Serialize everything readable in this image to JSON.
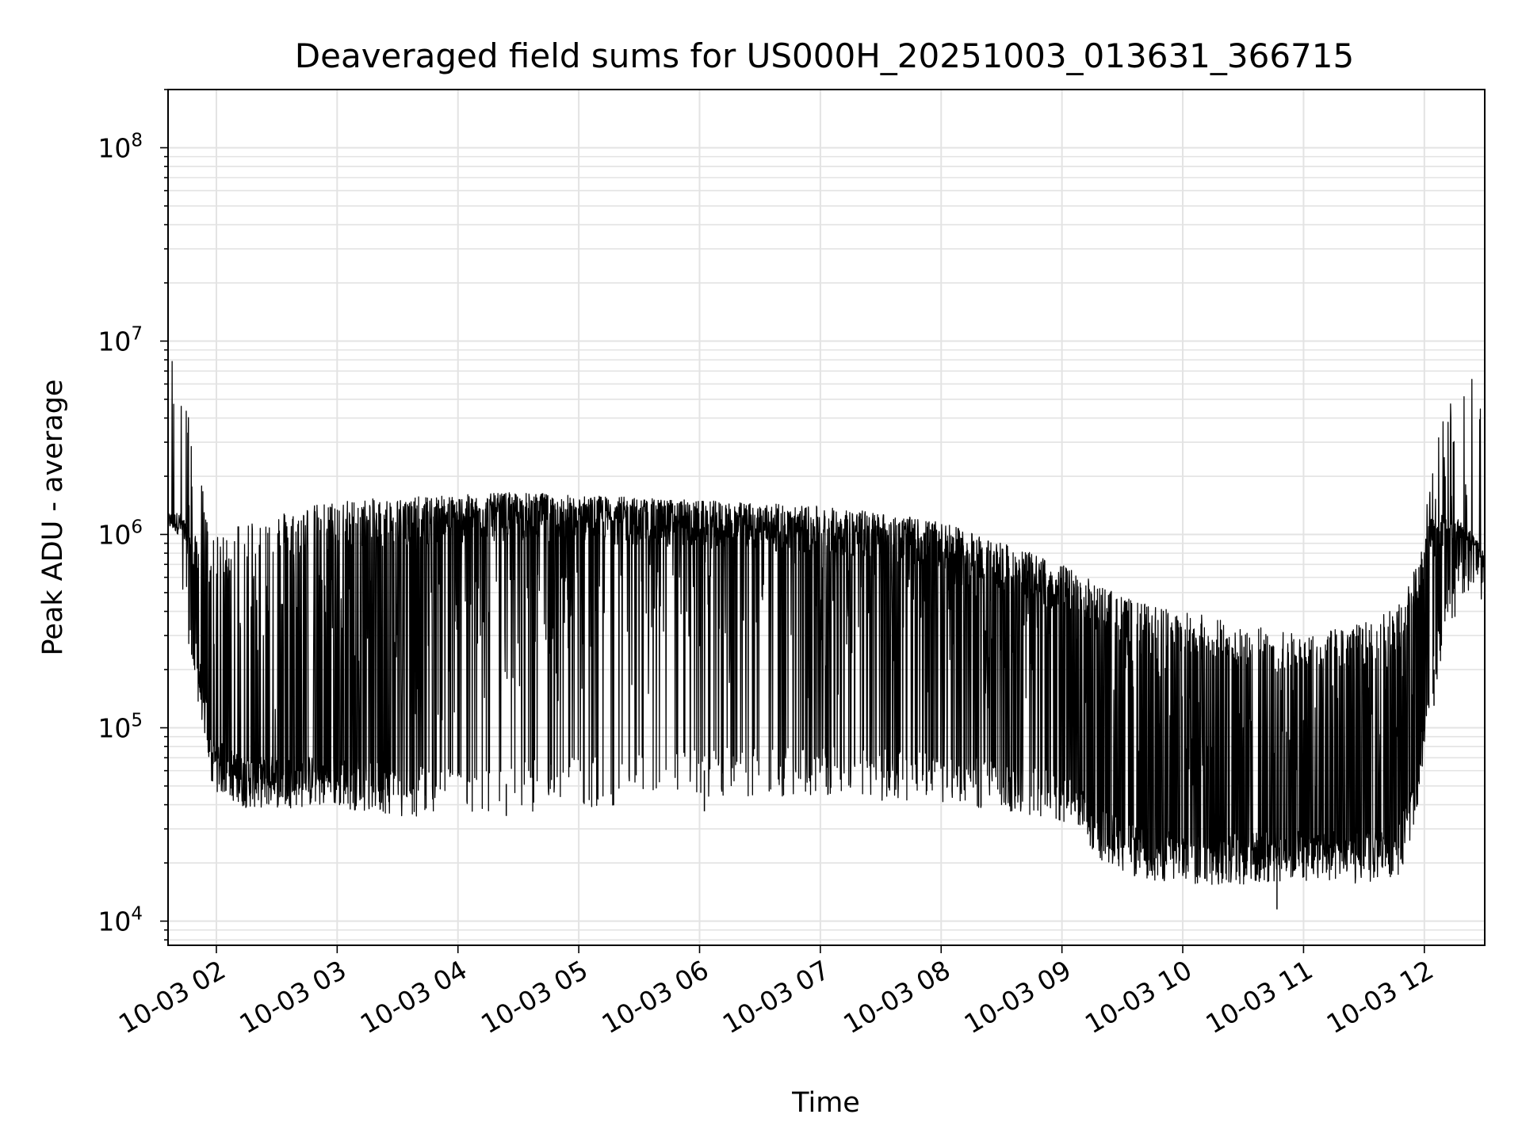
{
  "chart_data": {
    "type": "line",
    "title": "Deaveraged field sums for US000H_20251003_013631_366715",
    "xlabel": "Time",
    "ylabel": "Peak ADU - average",
    "yscale": "log",
    "ylim": [
      7500,
      200000000
    ],
    "xlim_hours": [
      1.6,
      12.5
    ],
    "grid": true,
    "line_color": "#000000",
    "y_ticks": [
      {
        "value": 10000,
        "base": "10",
        "exp": "4"
      },
      {
        "value": 100000,
        "base": "10",
        "exp": "5"
      },
      {
        "value": 1000000,
        "base": "10",
        "exp": "6"
      },
      {
        "value": 10000000,
        "base": "10",
        "exp": "7"
      },
      {
        "value": 100000000,
        "base": "10",
        "exp": "8"
      }
    ],
    "x_ticks": [
      {
        "hour": 2,
        "label": "10-03 02"
      },
      {
        "hour": 3,
        "label": "10-03 03"
      },
      {
        "hour": 4,
        "label": "10-03 04"
      },
      {
        "hour": 5,
        "label": "10-03 05"
      },
      {
        "hour": 6,
        "label": "10-03 06"
      },
      {
        "hour": 7,
        "label": "10-03 07"
      },
      {
        "hour": 8,
        "label": "10-03 08"
      },
      {
        "hour": 9,
        "label": "10-03 09"
      },
      {
        "hour": 10,
        "label": "10-03 10"
      },
      {
        "hour": 11,
        "label": "10-03 11"
      },
      {
        "hour": 12,
        "label": "10-03 12"
      }
    ],
    "envelope": {
      "hours": [
        1.6,
        1.7,
        1.8,
        1.95,
        2.2,
        2.5,
        3.0,
        3.5,
        4.0,
        4.5,
        5.0,
        5.5,
        6.0,
        6.5,
        7.0,
        7.5,
        8.0,
        8.5,
        9.0,
        9.3,
        9.6,
        10.0,
        10.5,
        11.0,
        11.5,
        11.8,
        11.95,
        12.05,
        12.2,
        12.35,
        12.5
      ],
      "baseline": [
        800000,
        600000,
        250000,
        70000,
        55000,
        55000,
        55000,
        50000,
        48000,
        52000,
        55000,
        58000,
        60000,
        62000,
        62000,
        60000,
        58000,
        52000,
        45000,
        30000,
        24000,
        22000,
        22000,
        23000,
        22000,
        25000,
        45000,
        150000,
        400000,
        750000,
        600000
      ],
      "peak": [
        1300000,
        1300000,
        1000000,
        900000,
        1200000,
        1300000,
        1500000,
        1550000,
        1600000,
        1650000,
        1600000,
        1550000,
        1500000,
        1450000,
        1400000,
        1300000,
        1150000,
        900000,
        700000,
        550000,
        450000,
        400000,
        350000,
        300000,
        350000,
        450000,
        700000,
        1200000,
        1300000,
        1100000,
        800000
      ],
      "spike_fraction": [
        0.9,
        0.9,
        0.4,
        0.18,
        0.15,
        0.2,
        0.35,
        0.55,
        0.75,
        0.8,
        0.8,
        0.8,
        0.75,
        0.75,
        0.7,
        0.65,
        0.6,
        0.55,
        0.5,
        0.35,
        0.3,
        0.3,
        0.28,
        0.28,
        0.3,
        0.3,
        0.3,
        0.5,
        0.6,
        0.6,
        0.6
      ]
    },
    "outliers": [
      {
        "hour": 12.24,
        "value": 3000000
      },
      {
        "hour": 12.08,
        "value": 130000
      },
      {
        "hour": 10.78,
        "value": 11500
      },
      {
        "hour": 6.04,
        "value": 37000
      },
      {
        "hour": 4.4,
        "value": 35000
      }
    ]
  }
}
